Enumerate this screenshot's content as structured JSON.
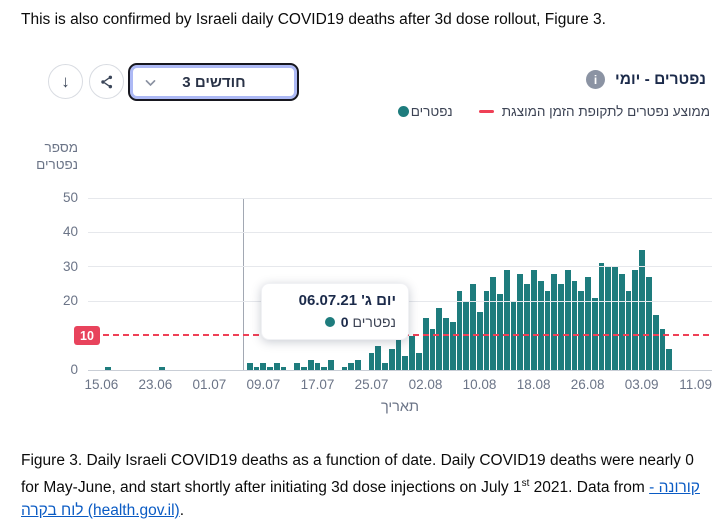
{
  "page": {
    "intro_text": "This is also confirmed by Israeli daily COVID19 deaths after 3d dose rollout, Figure 3.",
    "caption": {
      "before_sup": "Figure 3. Daily Israeli COVID19 deaths as a function of date. Daily COVID19 deaths were nearly 0 for May-June, and start shortly after initiating 3d dose injections on July 1",
      "sup": "st",
      "after_sup": " 2021. Data from ",
      "link_text": "קורונה - לוח בקרה (health.gov.il)",
      "after_link": "."
    }
  },
  "toolbar": {
    "download_icon": "↓",
    "share_icon": "share-nodes",
    "range_select": {
      "value": "3 חודשים",
      "chevron_icon": "chevron-down"
    }
  },
  "header": {
    "title": "נפטרים - יומי",
    "info_icon": "i"
  },
  "legend": {
    "series1_label": "נפטרים",
    "series2_label": "ממוצע נפטרים לתקופת הזמן המוצגת"
  },
  "tooltip": {
    "date_label": "יום ג' 06.07.21",
    "value": "0",
    "value_label": "נפטרים"
  },
  "axes": {
    "y_label_line1": "מספר",
    "y_label_line2": "נפטרים",
    "x_label": "תאריך",
    "avg_badge": "10"
  },
  "colors": {
    "bar_teal": "#1e7c7d",
    "avg_red": "#ef4056",
    "badge_red": "#e8435c",
    "title_navy": "#1b2a4a",
    "axis_gray": "#6b7487",
    "link_blue": "#0a5bc4"
  },
  "chart_data": {
    "type": "bar",
    "title": "נפטרים - יומי",
    "xlabel": "תאריך",
    "ylabel": "מספר נפטרים",
    "ylim": [
      0,
      50
    ],
    "y_ticks": [
      0,
      10,
      20,
      30,
      40,
      50
    ],
    "x_ticks": [
      "15.06",
      "23.06",
      "01.07",
      "09.07",
      "17.07",
      "25.07",
      "02.08",
      "10.08",
      "18.08",
      "26.08",
      "03.09",
      "11.09"
    ],
    "x_tick_day_index": [
      0,
      8,
      16,
      24,
      32,
      40,
      48,
      56,
      64,
      72,
      80,
      88
    ],
    "average_line_value": 10,
    "reference_date": "06.07.21",
    "grid": true,
    "legend_position": "top-right",
    "legend": [
      "נפטרים",
      "ממוצע נפטרים לתקופת הזמן המוצגת"
    ],
    "dates": [
      "15.06",
      "16.06",
      "17.06",
      "18.06",
      "19.06",
      "20.06",
      "21.06",
      "22.06",
      "23.06",
      "24.06",
      "25.06",
      "26.06",
      "27.06",
      "28.06",
      "29.06",
      "30.06",
      "01.07",
      "02.07",
      "03.07",
      "04.07",
      "05.07",
      "06.07",
      "07.07",
      "08.07",
      "09.07",
      "10.07",
      "11.07",
      "12.07",
      "13.07",
      "14.07",
      "15.07",
      "16.07",
      "17.07",
      "18.07",
      "19.07",
      "20.07",
      "21.07",
      "22.07",
      "23.07",
      "24.07",
      "25.07",
      "26.07",
      "27.07",
      "28.07",
      "29.07",
      "30.07",
      "31.07",
      "01.08",
      "02.08",
      "03.08",
      "04.08",
      "05.08",
      "06.08",
      "07.08",
      "08.08",
      "09.08",
      "10.08",
      "11.08",
      "12.08",
      "13.08",
      "14.08",
      "15.08",
      "16.08",
      "17.08",
      "18.08",
      "19.08",
      "20.08",
      "21.08",
      "22.08",
      "23.08",
      "24.08",
      "25.08",
      "26.08",
      "27.08",
      "28.08",
      "29.08",
      "30.08",
      "31.08",
      "01.09",
      "02.09",
      "03.09",
      "04.09",
      "05.09",
      "06.09",
      "07.09",
      "08.09",
      "09.09",
      "10.09",
      "11.09"
    ],
    "values": [
      0,
      1,
      0,
      0,
      0,
      0,
      0,
      0,
      0,
      1,
      0,
      0,
      0,
      0,
      0,
      0,
      0,
      0,
      0,
      0,
      0,
      0,
      2,
      1,
      2,
      1,
      2,
      1,
      0,
      2,
      1,
      3,
      2,
      1,
      3,
      0,
      1,
      2,
      3,
      0,
      5,
      7,
      2,
      6,
      9,
      4,
      10,
      5,
      15,
      12,
      18,
      15,
      14,
      23,
      20,
      25,
      17,
      23,
      27,
      22,
      29,
      20,
      28,
      25,
      29,
      26,
      23,
      28,
      25,
      29,
      26,
      23,
      27,
      21,
      31,
      30,
      30,
      28,
      23,
      29,
      35,
      27,
      16,
      12,
      6,
      0,
      0,
      0,
      0
    ]
  }
}
